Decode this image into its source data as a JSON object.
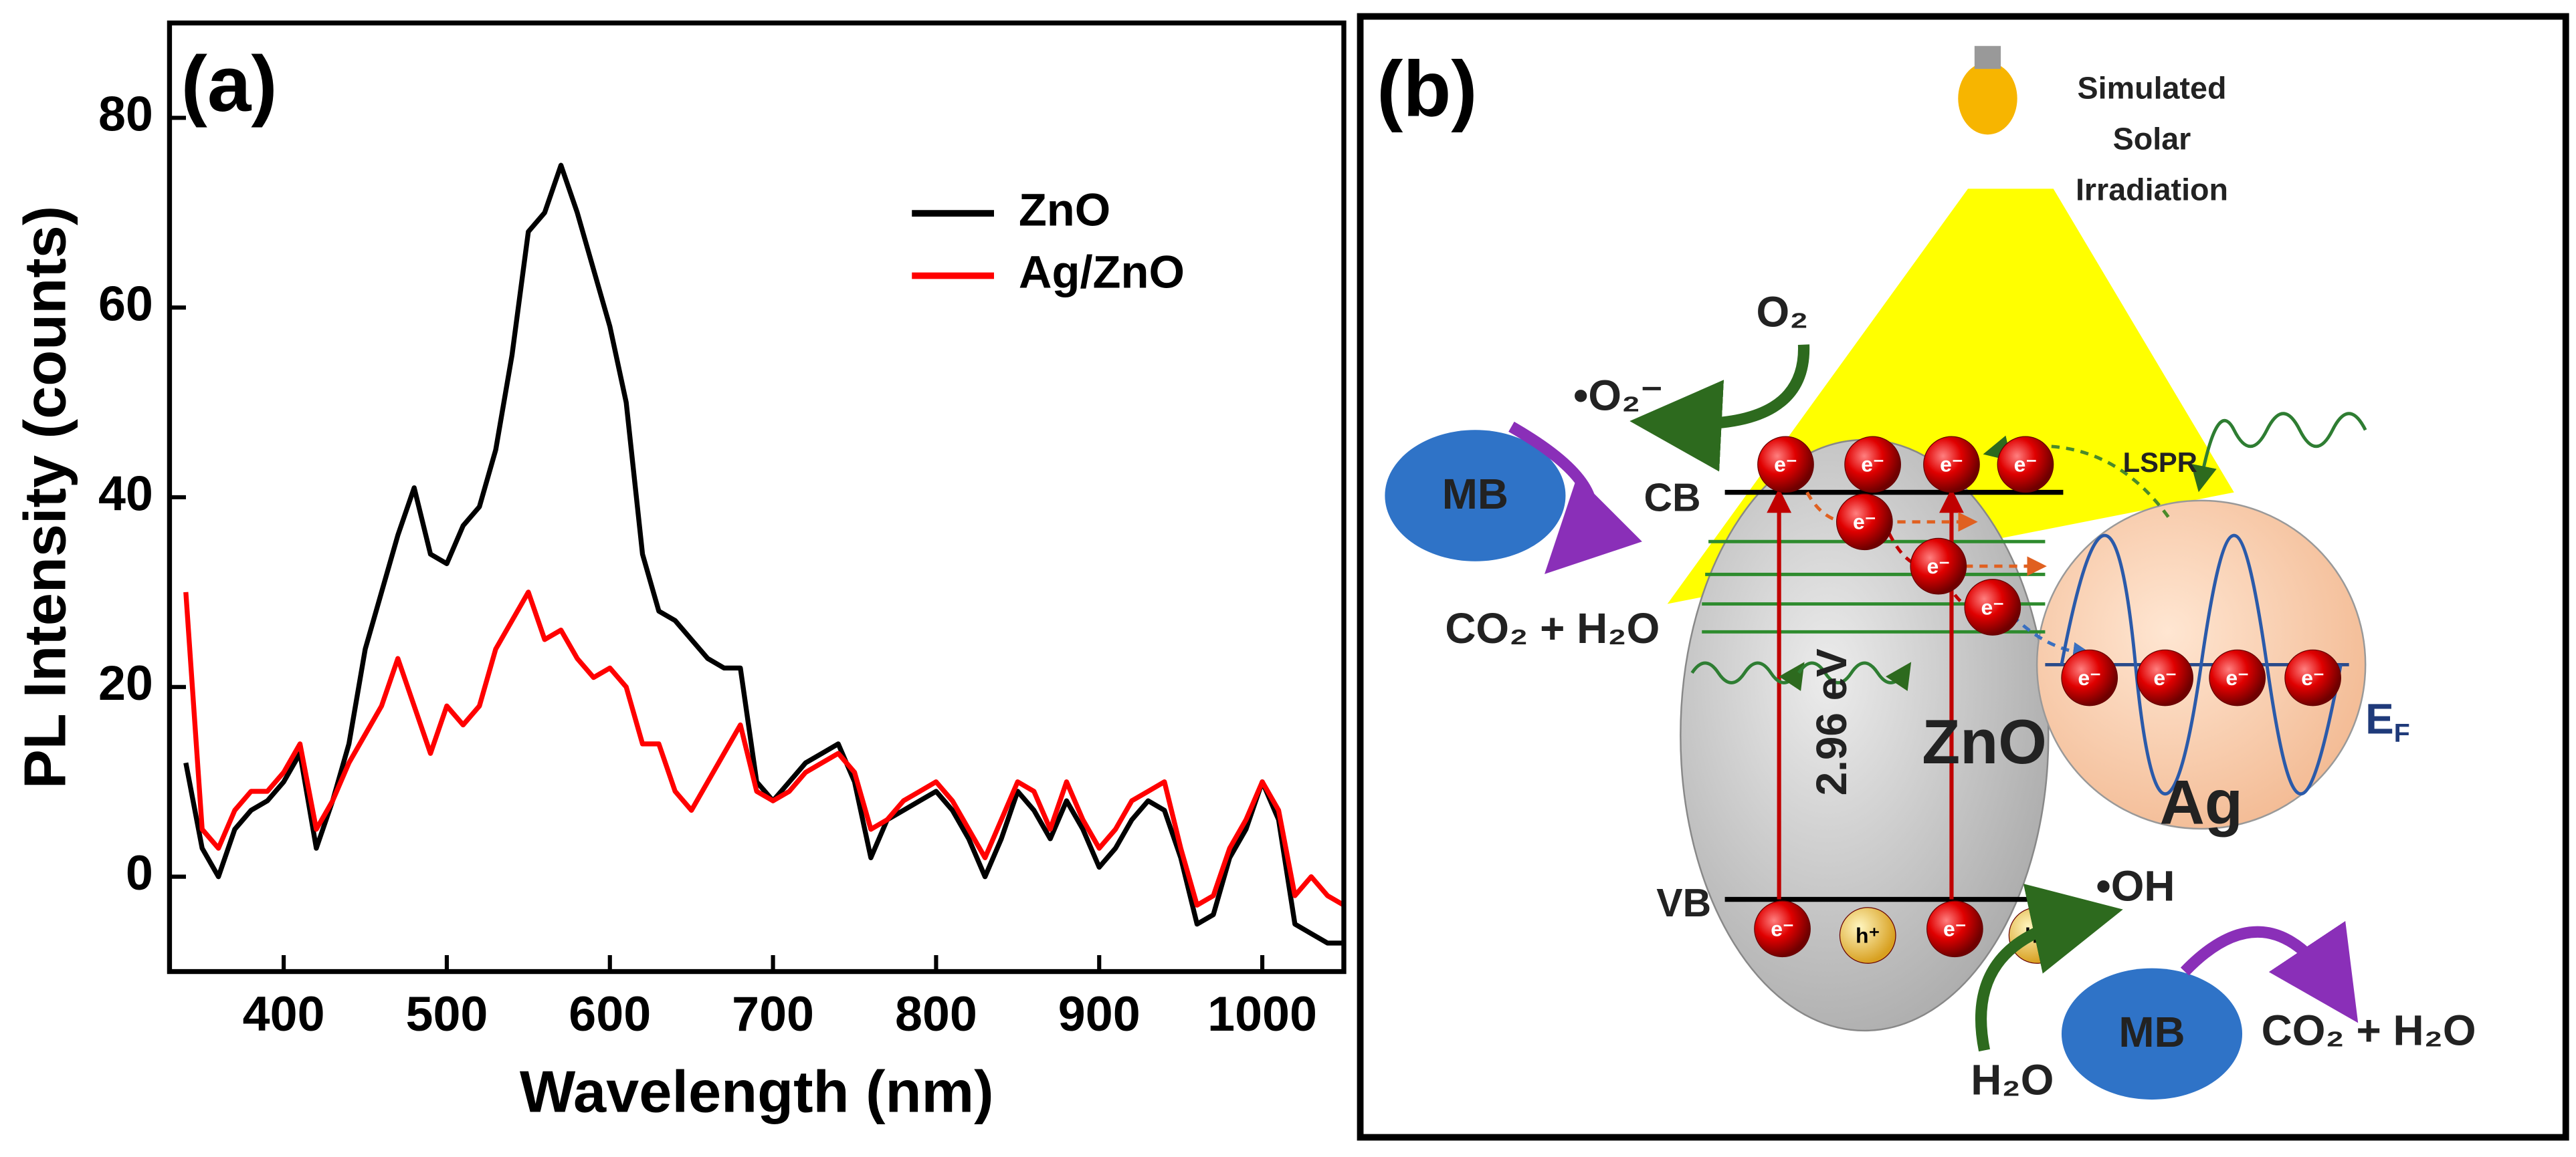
{
  "chart_data": {
    "type": "line",
    "panel_label": "(a)",
    "xlabel": "Wavelength (nm)",
    "ylabel": "PL Intensity (counts)",
    "x": [
      340,
      350,
      360,
      370,
      380,
      390,
      400,
      410,
      420,
      430,
      440,
      450,
      460,
      470,
      480,
      490,
      500,
      510,
      520,
      530,
      540,
      550,
      560,
      570,
      580,
      590,
      600,
      610,
      620,
      630,
      640,
      650,
      660,
      670,
      680,
      690,
      700,
      710,
      720,
      730,
      740,
      750,
      760,
      770,
      780,
      790,
      800,
      810,
      820,
      830,
      840,
      850,
      860,
      870,
      880,
      890,
      900,
      910,
      920,
      930,
      940,
      950,
      960,
      970,
      980,
      990,
      1000,
      1010,
      1020,
      1030,
      1040,
      1050
    ],
    "series": [
      {
        "name": "ZnO",
        "color": "#000000",
        "values": [
          12,
          3,
          0,
          5,
          7,
          8,
          10,
          13,
          3,
          8,
          14,
          24,
          30,
          36,
          41,
          34,
          33,
          37,
          39,
          45,
          55,
          68,
          70,
          75,
          70,
          64,
          58,
          50,
          34,
          28,
          27,
          25,
          23,
          22,
          22,
          10,
          8,
          10,
          12,
          13,
          14,
          10,
          2,
          6,
          7,
          8,
          9,
          7,
          4,
          0,
          4,
          9,
          7,
          4,
          8,
          5,
          1,
          3,
          6,
          8,
          7,
          2,
          -5,
          -4,
          2,
          5,
          10,
          6,
          -5,
          -6,
          -7,
          -7
        ]
      },
      {
        "name": "Ag/ZnO",
        "color": "#ff0000",
        "values": [
          30,
          5,
          3,
          7,
          9,
          9,
          11,
          14,
          5,
          8,
          12,
          15,
          18,
          23,
          18,
          13,
          18,
          16,
          18,
          24,
          27,
          30,
          25,
          26,
          23,
          21,
          22,
          20,
          14,
          14,
          9,
          7,
          10,
          13,
          16,
          9,
          8,
          9,
          11,
          12,
          13,
          11,
          5,
          6,
          8,
          9,
          10,
          8,
          5,
          2,
          6,
          10,
          9,
          5,
          10,
          6,
          3,
          5,
          8,
          9,
          10,
          3,
          -3,
          -2,
          3,
          6,
          10,
          7,
          -2,
          0,
          -2,
          -3
        ]
      }
    ],
    "xlim": [
      330,
      1050
    ],
    "xticks": [
      400,
      500,
      600,
      700,
      800,
      900,
      1000
    ],
    "ylim": [
      -10,
      90
    ],
    "yticks": [
      0,
      20,
      40,
      60,
      80
    ],
    "legend": "upper right"
  },
  "diagram": {
    "panel_label": "(b)",
    "light_source": [
      "Simulated",
      "Solar",
      "Irradiation"
    ],
    "dye": "MB",
    "products": "CO₂ + H₂O",
    "oxygen": "O₂",
    "superoxide": "•O₂⁻",
    "hydroxyl": "•OH",
    "water": "H₂O",
    "conduction_band": "CB",
    "valence_band": "VB",
    "electron": "e⁻",
    "hole": "h⁺",
    "band_gap": "2.96 eV",
    "semiconductor": "ZnO",
    "metal": "Ag",
    "plasmon": "LSPR",
    "fermi_level": {
      "symbol": "E",
      "subscript": "F"
    }
  }
}
